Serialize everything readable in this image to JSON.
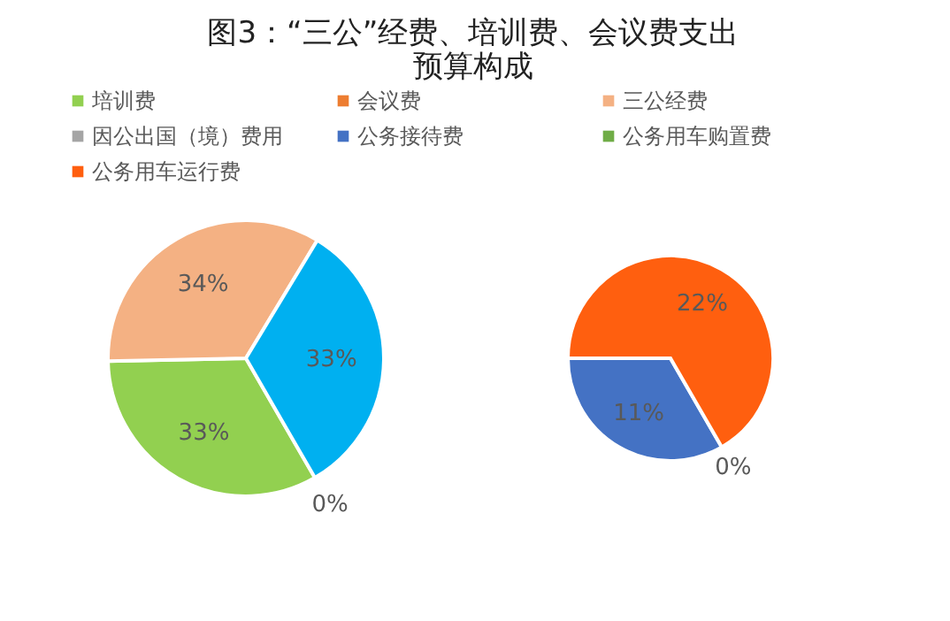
{
  "chart_data": [
    {
      "type": "pie",
      "title": "图3：“三公”经费、培训费、会议费支出预算构成",
      "legend": "top",
      "categories": [
        "培训费",
        "会议费",
        "三公经费",
        null
      ],
      "values": [
        33,
        0,
        34,
        33
      ],
      "colors": [
        "#92d050",
        "#ed7d31",
        "#f4b183",
        "#00b0f0"
      ],
      "value_labels": [
        "33%",
        "0%",
        "34%",
        "33%"
      ]
    },
    {
      "type": "pie",
      "legend": "top",
      "categories": [
        "因公出国（境）费用",
        "公务接待费",
        "公务用车购置费",
        "公务用车运行费"
      ],
      "values": [
        0,
        11,
        0,
        22
      ],
      "colors": [
        "#a5a5a5",
        "#4472c4",
        "#70ad47",
        "#ff5f0f"
      ],
      "value_labels": [
        null,
        "11%",
        "0%",
        "22%"
      ]
    }
  ]
}
